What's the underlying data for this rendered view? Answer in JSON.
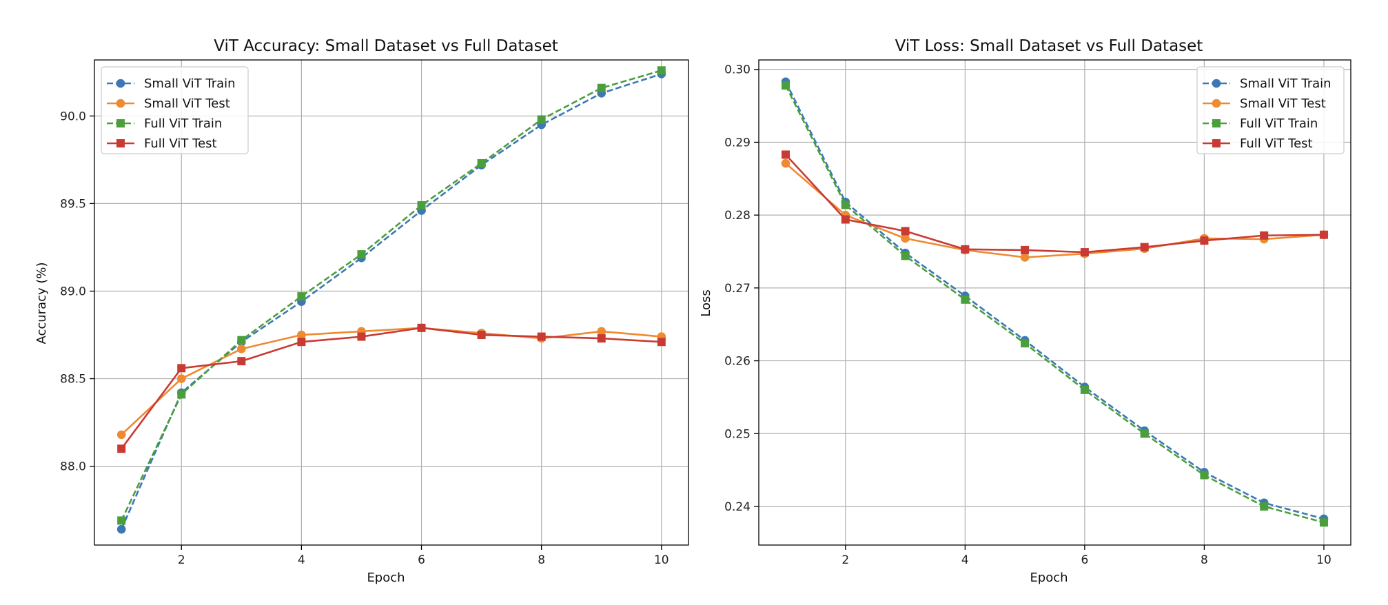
{
  "chart_data": [
    {
      "type": "line",
      "title": "ViT Accuracy: Small Dataset vs Full Dataset",
      "xlabel": "Epoch",
      "ylabel": "Accuracy (%)",
      "xlim": [
        0.55,
        10.45
      ],
      "ylim": [
        87.55,
        90.32
      ],
      "xticks": [
        2,
        4,
        6,
        8,
        10
      ],
      "yticks": [
        88.0,
        88.5,
        89.0,
        89.5,
        90.0
      ],
      "ytick_labels": [
        "88.0",
        "88.5",
        "89.0",
        "89.5",
        "90.0"
      ],
      "grid": true,
      "legend_position": "upper-left",
      "x": [
        1,
        2,
        3,
        4,
        5,
        6,
        7,
        8,
        9,
        10
      ],
      "series": [
        {
          "name": "Small ViT Train",
          "color": "#3d78b4",
          "marker": "circle",
          "dashed": true,
          "values": [
            87.64,
            88.42,
            88.71,
            88.94,
            89.19,
            89.46,
            89.72,
            89.95,
            90.13,
            90.24
          ]
        },
        {
          "name": "Small ViT Test",
          "color": "#ee8a31",
          "marker": "circle",
          "dashed": false,
          "values": [
            88.18,
            88.5,
            88.67,
            88.75,
            88.77,
            88.79,
            88.76,
            88.73,
            88.77,
            88.74
          ]
        },
        {
          "name": "Full ViT Train",
          "color": "#4a9e3c",
          "marker": "square",
          "dashed": true,
          "values": [
            87.69,
            88.41,
            88.72,
            88.97,
            89.21,
            89.49,
            89.73,
            89.98,
            90.16,
            90.26
          ]
        },
        {
          "name": "Full ViT Test",
          "color": "#c93a32",
          "marker": "square",
          "dashed": false,
          "values": [
            88.1,
            88.56,
            88.6,
            88.71,
            88.74,
            88.79,
            88.75,
            88.74,
            88.73,
            88.71
          ]
        }
      ]
    },
    {
      "type": "line",
      "title": "ViT Loss: Small Dataset vs Full Dataset",
      "xlabel": "Epoch",
      "ylabel": "Loss",
      "xlim": [
        0.55,
        10.45
      ],
      "ylim": [
        0.2347,
        0.3013
      ],
      "xticks": [
        2,
        4,
        6,
        8,
        10
      ],
      "yticks": [
        0.24,
        0.25,
        0.26,
        0.27,
        0.28,
        0.29,
        0.3
      ],
      "ytick_labels": [
        "0.24",
        "0.25",
        "0.26",
        "0.27",
        "0.28",
        "0.29",
        "0.30"
      ],
      "grid": true,
      "legend_position": "upper-right",
      "x": [
        1,
        2,
        3,
        4,
        5,
        6,
        7,
        8,
        9,
        10
      ],
      "series": [
        {
          "name": "Small ViT Train",
          "color": "#3d78b4",
          "marker": "circle",
          "dashed": true,
          "values": [
            0.2983,
            0.2818,
            0.2748,
            0.2689,
            0.2628,
            0.2564,
            0.2504,
            0.2447,
            0.2405,
            0.2383
          ]
        },
        {
          "name": "Small ViT Test",
          "color": "#ee8a31",
          "marker": "circle",
          "dashed": false,
          "values": [
            0.2871,
            0.28,
            0.2768,
            0.2752,
            0.2742,
            0.2747,
            0.2754,
            0.2768,
            0.2767,
            0.2773
          ]
        },
        {
          "name": "Full ViT Train",
          "color": "#4a9e3c",
          "marker": "square",
          "dashed": true,
          "values": [
            0.2978,
            0.2814,
            0.2744,
            0.2684,
            0.2624,
            0.256,
            0.25,
            0.2443,
            0.24,
            0.2378
          ]
        },
        {
          "name": "Full ViT Test",
          "color": "#c93a32",
          "marker": "square",
          "dashed": false,
          "values": [
            0.2883,
            0.2794,
            0.2778,
            0.2753,
            0.2752,
            0.2749,
            0.2756,
            0.2765,
            0.2772,
            0.2773
          ]
        }
      ]
    }
  ]
}
